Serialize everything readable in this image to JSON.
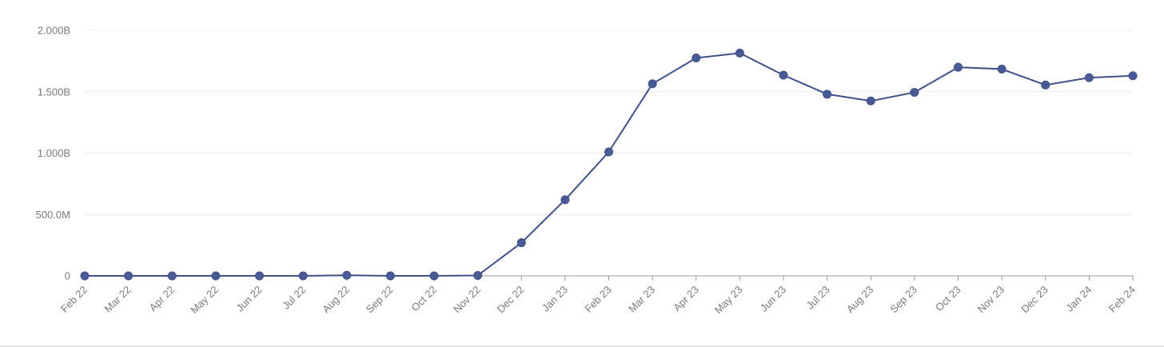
{
  "chart_data": {
    "type": "line",
    "title": "",
    "xlabel": "",
    "ylabel": "",
    "categories": [
      "Feb 22",
      "Mar 22",
      "Apr 22",
      "May 22",
      "Jun 22",
      "Jul 22",
      "Aug 22",
      "Sep 22",
      "Oct 22",
      "Nov 22",
      "Dec 22",
      "Jan 23",
      "Feb 23",
      "Mar 23",
      "Apr 23",
      "May 23",
      "Jun 23",
      "Jul 23",
      "Aug 23",
      "Sep 23",
      "Oct 23",
      "Nov 23",
      "Dec 23",
      "Jan 24",
      "Feb 24"
    ],
    "series": [
      {
        "values": [
          0,
          0,
          0,
          0,
          0,
          0,
          5000000,
          0,
          0,
          3000000,
          270000000,
          620000000,
          1010000000,
          1565000000,
          1775000000,
          1815000000,
          1635000000,
          1480000000,
          1425000000,
          1495000000,
          1700000000,
          1685000000,
          1555000000,
          1615000000,
          1630000000
        ]
      }
    ],
    "ylim": [
      0,
      2000000000
    ],
    "y_ticks": [
      {
        "value": 0,
        "label": "0"
      },
      {
        "value": 500000000,
        "label": "500.0M"
      },
      {
        "value": 1000000000,
        "label": "1.000B"
      },
      {
        "value": 1500000000,
        "label": "1.500B"
      },
      {
        "value": 2000000000,
        "label": "2.000B"
      }
    ],
    "grid": true,
    "legend": "none",
    "colors": {
      "line": "#3f4f8a",
      "marker": "#4a5a94",
      "grid": "#ececec",
      "axis": "#9a9a9a",
      "tick_label": "#7a7a7a"
    }
  }
}
